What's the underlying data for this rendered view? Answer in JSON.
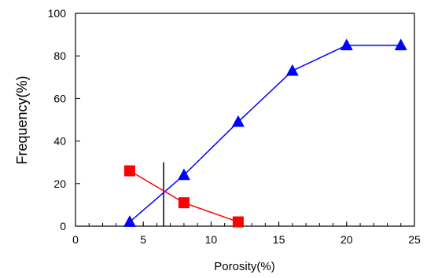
{
  "chart_data": {
    "type": "line",
    "title": "",
    "xlabel": "Porosity(%)",
    "ylabel": "Frequency(%)",
    "xlim": [
      0,
      25
    ],
    "ylim": [
      0,
      100
    ],
    "xticks": [
      0,
      5,
      10,
      15,
      20,
      25
    ],
    "yticks": [
      0,
      20,
      40,
      60,
      80,
      100
    ],
    "grid": false,
    "legend": "none",
    "series": [
      {
        "color": "#0000ff",
        "marker": "triangle",
        "x": [
          4,
          8,
          12,
          16,
          20,
          24
        ],
        "y": [
          2,
          24,
          49,
          73,
          85,
          85
        ]
      },
      {
        "color": "#ff0000",
        "marker": "square",
        "x": [
          4,
          8,
          12
        ],
        "y": [
          26,
          11,
          2
        ]
      }
    ],
    "annotations": [
      {
        "type": "vertical-line",
        "x": 6.5,
        "y_range": [
          0,
          30
        ],
        "color": "#000000"
      }
    ]
  }
}
